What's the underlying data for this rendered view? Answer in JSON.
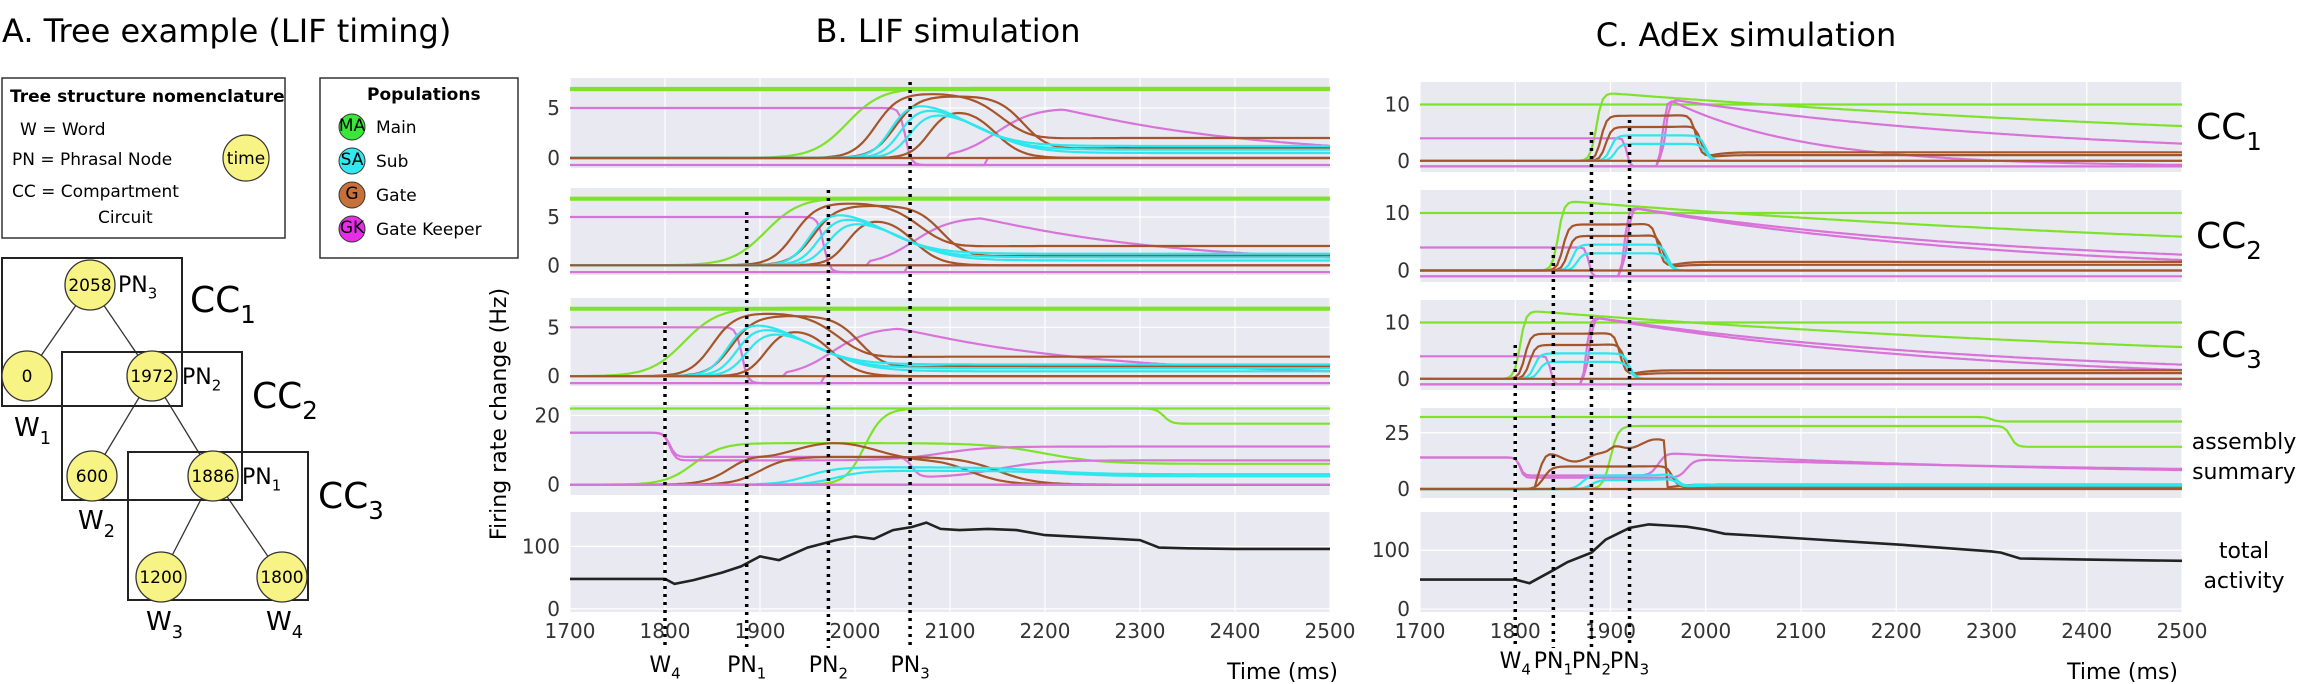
{
  "panel_a": {
    "title": "A. Tree example (LIF timing)",
    "nomenclature": {
      "title": "Tree structure nomenclature",
      "lines": [
        "W = Word",
        "PN = Phrasal Node",
        "CC = Compartment",
        "Circuit"
      ],
      "time_badge": "time"
    },
    "populations": {
      "title": "Populations",
      "items": [
        {
          "abbr": "MA",
          "label": "Main",
          "color": "#39e639"
        },
        {
          "abbr": "SA",
          "label": "Sub",
          "color": "#33e8f0"
        },
        {
          "abbr": "G",
          "label": "Gate",
          "color": "#c8703a"
        },
        {
          "abbr": "GK",
          "label": "Gate Keeper",
          "color": "#e62ee6"
        }
      ]
    },
    "tree_nodes": [
      {
        "id": "pn3",
        "value": "2058",
        "label": "PN",
        "sub": "3"
      },
      {
        "id": "w1",
        "value": "0",
        "label": "W",
        "sub": "1"
      },
      {
        "id": "pn2",
        "value": "1972",
        "label": "PN",
        "sub": "2"
      },
      {
        "id": "w2",
        "value": "600",
        "label": "W",
        "sub": "2"
      },
      {
        "id": "pn1",
        "value": "1886",
        "label": "PN",
        "sub": "1"
      },
      {
        "id": "w3",
        "value": "1200",
        "label": "W",
        "sub": "3"
      },
      {
        "id": "w4",
        "value": "1800",
        "label": "W",
        "sub": "4"
      }
    ],
    "compartments": [
      {
        "label": "CC",
        "sub": "1"
      },
      {
        "label": "CC",
        "sub": "2"
      },
      {
        "label": "CC",
        "sub": "3"
      }
    ]
  },
  "colors": {
    "main": "#7fe22a",
    "sub": "#2ee6ee",
    "gate": "#a5552a",
    "gatekeeper": "#d874d8",
    "total": "#222222",
    "plot_bg": "#e9e9f1"
  },
  "chart_data": [
    {
      "type": "line",
      "title": "B. LIF simulation",
      "ylabel": "Firing rate change (Hz)",
      "xlabel": "Time (ms)",
      "xlim": [
        1700,
        2500
      ],
      "xticks": [
        1700,
        1800,
        1900,
        2000,
        2100,
        2200,
        2300,
        2400,
        2500
      ],
      "grid": true,
      "markers": [
        {
          "x": 1800,
          "label": "W",
          "sub": "4"
        },
        {
          "x": 1886,
          "label": "PN",
          "sub": "1"
        },
        {
          "x": 1972,
          "label": "PN",
          "sub": "2"
        },
        {
          "x": 2058,
          "label": "PN",
          "sub": "3"
        }
      ],
      "rows": [
        {
          "ylim": [
            -1,
            8
          ],
          "yticks": [
            0,
            5
          ]
        },
        {
          "ylim": [
            -1,
            8
          ],
          "yticks": [
            0,
            5
          ]
        },
        {
          "ylim": [
            -1,
            8
          ],
          "yticks": [
            0,
            5
          ]
        },
        {
          "ylim": [
            -3,
            23
          ],
          "yticks": [
            0,
            20
          ]
        },
        {
          "ylim": [
            -5,
            155
          ],
          "yticks": [
            0,
            100
          ]
        }
      ],
      "total_activity": {
        "x": [
          1700,
          1800,
          1810,
          1830,
          1860,
          1880,
          1900,
          1920,
          1950,
          1980,
          2000,
          2020,
          2040,
          2060,
          2075,
          2090,
          2110,
          2140,
          2170,
          2200,
          2250,
          2300,
          2320,
          2350,
          2400,
          2450,
          2500
        ],
        "y": [
          48,
          48,
          40,
          46,
          58,
          68,
          84,
          78,
          98,
          110,
          116,
          112,
          126,
          131,
          138,
          128,
          126,
          128,
          126,
          118,
          114,
          110,
          98,
          97,
          96,
          96,
          96
        ]
      }
    },
    {
      "type": "line",
      "title": "C. AdEx simulation",
      "xlabel": "Time (ms)",
      "xlim": [
        1700,
        2500
      ],
      "xticks": [
        1700,
        1800,
        1900,
        2000,
        2100,
        2200,
        2300,
        2400,
        2500
      ],
      "grid": true,
      "markers": [
        {
          "x": 1800,
          "label": "W",
          "sub": "4"
        },
        {
          "x": 1840,
          "label": "PN",
          "sub": "1"
        },
        {
          "x": 1880,
          "label": "PN",
          "sub": "2"
        },
        {
          "x": 1920,
          "label": "PN",
          "sub": "3"
        }
      ],
      "rows": [
        {
          "ylim": [
            -2,
            14
          ],
          "yticks": [
            0,
            10
          ],
          "label": "CC",
          "sub": "1"
        },
        {
          "ylim": [
            -2,
            14
          ],
          "yticks": [
            0,
            10
          ],
          "label": "CC",
          "sub": "2"
        },
        {
          "ylim": [
            -2,
            14
          ],
          "yticks": [
            0,
            10
          ],
          "label": "CC",
          "sub": "3"
        },
        {
          "ylim": [
            -4,
            36
          ],
          "yticks": [
            0,
            25
          ],
          "label": "assembly summary"
        },
        {
          "ylim": [
            -5,
            165
          ],
          "yticks": [
            0,
            100
          ],
          "label": "total activity"
        }
      ],
      "total_activity": {
        "x": [
          1700,
          1800,
          1815,
          1840,
          1855,
          1880,
          1895,
          1920,
          1940,
          1960,
          1980,
          2000,
          2020,
          2050,
          2100,
          2200,
          2300,
          2310,
          2330,
          2400,
          2500
        ],
        "y": [
          50,
          50,
          44,
          66,
          80,
          96,
          118,
          138,
          144,
          142,
          140,
          135,
          128,
          125,
          120,
          110,
          98,
          96,
          86,
          84,
          82
        ]
      }
    }
  ]
}
